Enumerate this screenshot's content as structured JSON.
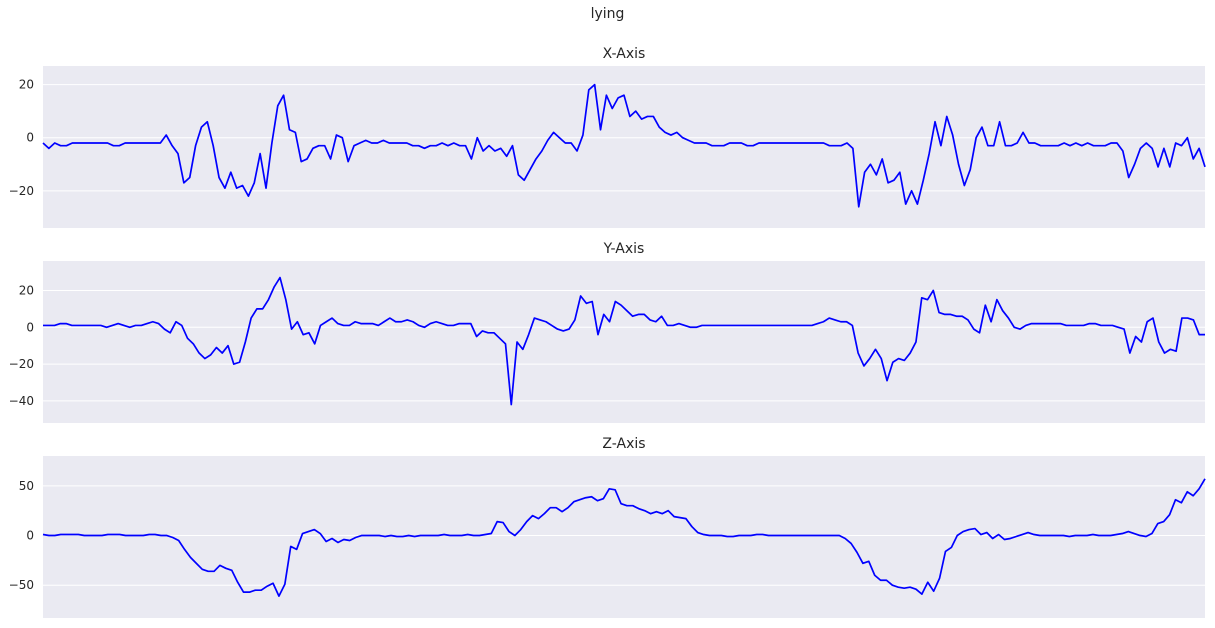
{
  "figure_title": "lying",
  "chart_data": [
    {
      "type": "line",
      "title": "X-Axis",
      "xlabel": "",
      "ylabel": "",
      "ylim": [
        -34,
        27
      ],
      "yticks": [
        20,
        0,
        -20
      ],
      "grid": true,
      "x_ticks_visible": false,
      "line_color": "#0000ff",
      "background_color": "#eaeaf2",
      "series": [
        {
          "values": [
            -2,
            -4,
            -2,
            -3,
            -3,
            -2,
            -2,
            -2,
            -2,
            -2,
            -2,
            -2,
            -3,
            -3,
            -2,
            -2,
            -2,
            -2,
            -2,
            -2,
            -2,
            1,
            -3,
            -6,
            -17,
            -15,
            -3,
            4,
            6,
            -3,
            -15,
            -19,
            -13,
            -19,
            -18,
            -22,
            -17,
            -6,
            -19,
            -2,
            12,
            16,
            3,
            2,
            -9,
            -8,
            -4,
            -3,
            -3,
            -8,
            1,
            0,
            -9,
            -3,
            -2,
            -1,
            -2,
            -2,
            -1,
            -2,
            -2,
            -2,
            -2,
            -3,
            -3,
            -4,
            -3,
            -3,
            -2,
            -3,
            -2,
            -3,
            -3,
            -8,
            0,
            -5,
            -3,
            -5,
            -4,
            -7,
            -3,
            -14,
            -16,
            -12,
            -8,
            -5,
            -1,
            2,
            0,
            -2,
            -2,
            -5,
            1,
            18,
            20,
            3,
            16,
            11,
            15,
            16,
            8,
            10,
            7,
            8,
            8,
            4,
            2,
            1,
            2,
            0,
            -1,
            -2,
            -2,
            -2,
            -3,
            -3,
            -3,
            -2,
            -2,
            -2,
            -3,
            -3,
            -2,
            -2,
            -2,
            -2,
            -2,
            -2,
            -2,
            -2,
            -2,
            -2,
            -2,
            -2,
            -3,
            -3,
            -3,
            -2,
            -4,
            -26,
            -13,
            -10,
            -14,
            -8,
            -17,
            -16,
            -13,
            -25,
            -20,
            -25,
            -16,
            -6,
            6,
            -3,
            8,
            1,
            -10,
            -18,
            -12,
            0,
            4,
            -3,
            -3,
            6,
            -3,
            -3,
            -2,
            2,
            -2,
            -2,
            -3,
            -3,
            -3,
            -3,
            -2,
            -3,
            -2,
            -3,
            -2,
            -3,
            -3,
            -3,
            -2,
            -2,
            -5,
            -15,
            -10,
            -4,
            -2,
            -4,
            -11,
            -4,
            -11,
            -2,
            -3,
            0,
            -8,
            -4,
            -11
          ]
        }
      ]
    },
    {
      "type": "line",
      "title": "Y-Axis",
      "xlabel": "",
      "ylabel": "",
      "ylim": [
        -52,
        36
      ],
      "yticks": [
        20,
        0,
        -20,
        -40
      ],
      "grid": true,
      "x_ticks_visible": false,
      "line_color": "#0000ff",
      "background_color": "#eaeaf2",
      "series": [
        {
          "values": [
            1,
            1,
            1,
            2,
            2,
            1,
            1,
            1,
            1,
            1,
            1,
            0,
            1,
            2,
            1,
            0,
            1,
            1,
            2,
            3,
            2,
            -1,
            -3,
            3,
            1,
            -6,
            -9,
            -14,
            -17,
            -15,
            -11,
            -14,
            -10,
            -20,
            -19,
            -8,
            5,
            10,
            10,
            15,
            22,
            27,
            15,
            -1,
            3,
            -4,
            -3,
            -9,
            1,
            3,
            5,
            2,
            1,
            1,
            3,
            2,
            2,
            2,
            1,
            3,
            5,
            3,
            3,
            4,
            3,
            1,
            0,
            2,
            3,
            2,
            1,
            1,
            2,
            2,
            2,
            -5,
            -2,
            -3,
            -3,
            -6,
            -9,
            -42,
            -8,
            -12,
            -4,
            5,
            4,
            3,
            1,
            -1,
            -2,
            -1,
            4,
            17,
            13,
            14,
            -4,
            7,
            3,
            14,
            12,
            9,
            6,
            7,
            7,
            4,
            3,
            6,
            1,
            1,
            2,
            1,
            0,
            0,
            1,
            1,
            1,
            1,
            1,
            1,
            1,
            1,
            1,
            1,
            1,
            1,
            1,
            1,
            1,
            1,
            1,
            1,
            1,
            1,
            2,
            3,
            5,
            4,
            3,
            3,
            1,
            -14,
            -21,
            -17,
            -12,
            -17,
            -29,
            -19,
            -17,
            -18,
            -14,
            -8,
            16,
            15,
            20,
            8,
            7,
            7,
            6,
            6,
            4,
            -1,
            -3,
            12,
            3,
            15,
            9,
            5,
            0,
            -1,
            1,
            2,
            2,
            2,
            2,
            2,
            2,
            1,
            1,
            1,
            1,
            2,
            2,
            1,
            1,
            1,
            0,
            -1,
            -14,
            -5,
            -8,
            3,
            5,
            -8,
            -14,
            -12,
            -13,
            5,
            5,
            4,
            -4,
            -4
          ]
        }
      ]
    },
    {
      "type": "line",
      "title": "Z-Axis",
      "xlabel": "",
      "ylabel": "",
      "ylim": [
        -83,
        80
      ],
      "yticks": [
        50,
        0,
        -50
      ],
      "grid": true,
      "x_ticks_visible": false,
      "line_color": "#0000ff",
      "background_color": "#eaeaf2",
      "series": [
        {
          "values": [
            1,
            0,
            0,
            1,
            1,
            1,
            1,
            0,
            0,
            0,
            0,
            1,
            1,
            1,
            0,
            0,
            0,
            0,
            1,
            1,
            0,
            0,
            -2,
            -5,
            -14,
            -22,
            -28,
            -34,
            -36,
            -36,
            -30,
            -33,
            -35,
            -47,
            -57,
            -57,
            -55,
            -55,
            -51,
            -48,
            -61,
            -49,
            -11,
            -14,
            2,
            4,
            6,
            2,
            -6,
            -3,
            -7,
            -4,
            -5,
            -2,
            0,
            0,
            0,
            0,
            -1,
            0,
            -1,
            -1,
            0,
            -1,
            0,
            0,
            0,
            0,
            1,
            0,
            0,
            0,
            1,
            0,
            0,
            1,
            2,
            14,
            13,
            4,
            0,
            6,
            14,
            20,
            17,
            22,
            28,
            28,
            24,
            28,
            34,
            36,
            38,
            39,
            35,
            37,
            47,
            46,
            32,
            30,
            30,
            27,
            25,
            22,
            24,
            22,
            25,
            19,
            18,
            17,
            9,
            3,
            1,
            0,
            0,
            0,
            -1,
            -1,
            0,
            0,
            0,
            1,
            1,
            0,
            0,
            0,
            0,
            0,
            0,
            0,
            0,
            0,
            0,
            0,
            0,
            0,
            -3,
            -8,
            -17,
            -28,
            -26,
            -40,
            -45,
            -45,
            -50,
            -52,
            -53,
            -52,
            -54,
            -59,
            -47,
            -56,
            -43,
            -16,
            -12,
            0,
            4,
            6,
            7,
            1,
            3,
            -3,
            1,
            -4,
            -3,
            -1,
            1,
            3,
            1,
            0,
            0,
            0,
            0,
            0,
            -1,
            0,
            0,
            0,
            1,
            0,
            0,
            0,
            1,
            2,
            4,
            2,
            0,
            -1,
            2,
            12,
            14,
            21,
            36,
            33,
            44,
            40,
            47,
            57
          ]
        }
      ]
    }
  ]
}
